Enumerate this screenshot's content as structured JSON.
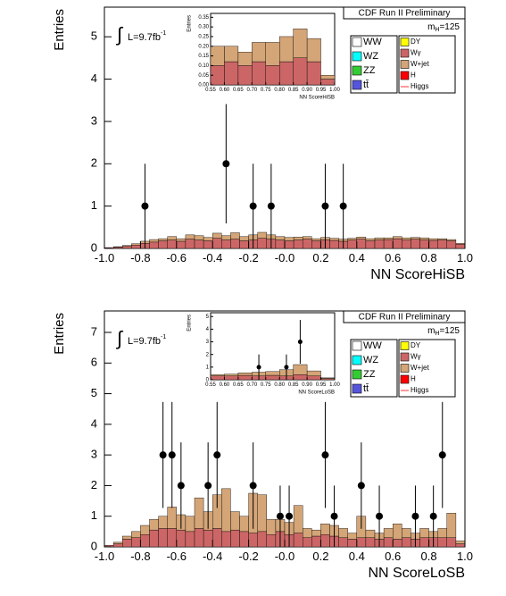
{
  "chart_data": [
    {
      "type": "histogram",
      "x_label": "NN ScoreHiSB",
      "y_label": "Entries",
      "xlim": [
        -1,
        1
      ],
      "ylim": [
        0,
        5.7
      ],
      "xticks": [
        {
          "value": -1,
          "label": "-1.0"
        },
        -0.8,
        -0.6,
        -0.4,
        -0.2,
        {
          "value": 0,
          "label": "-0.0"
        },
        0.2,
        0.4,
        0.6,
        0.8,
        {
          "value": 1,
          "label": "1.0"
        }
      ],
      "yticks": [
        0,
        1,
        2,
        3,
        4,
        5
      ],
      "bins": [
        -1,
        -0.95,
        -0.9,
        -0.85,
        -0.8,
        -0.75,
        -0.7,
        -0.65,
        -0.6,
        -0.55,
        -0.5,
        -0.45,
        -0.4,
        -0.35,
        -0.3,
        -0.25,
        -0.2,
        -0.15,
        -0.1,
        -0.05,
        0,
        0.05,
        0.1,
        0.15,
        0.2,
        0.25,
        0.3,
        0.35,
        0.4,
        0.45,
        0.5,
        0.55,
        0.6,
        0.65,
        0.7,
        0.75,
        0.8,
        0.85,
        0.9,
        0.95,
        1
      ],
      "series": [
        {
          "name": "Wγ",
          "color": "#cc6666",
          "values": [
            0.02,
            0.03,
            0.05,
            0.08,
            0.12,
            0.15,
            0.18,
            0.2,
            0.17,
            0.22,
            0.2,
            0.18,
            0.24,
            0.2,
            0.22,
            0.18,
            0.2,
            0.24,
            0.22,
            0.2,
            0.18,
            0.2,
            0.22,
            0.18,
            0.2,
            0.19,
            0.17,
            0.2,
            0.22,
            0.18,
            0.2,
            0.21,
            0.23,
            0.2,
            0.22,
            0.2,
            0.19,
            0.2,
            0.18,
            0.1
          ]
        },
        {
          "name": "W+jet",
          "color": "#d4a577",
          "values": [
            0,
            0.01,
            0.02,
            0.03,
            0.05,
            0.06,
            0.05,
            0.08,
            0.06,
            0.1,
            0.1,
            0.08,
            0.12,
            0.1,
            0.15,
            0.1,
            0.12,
            0.14,
            0.1,
            0.08,
            0.08,
            0.07,
            0.06,
            0.05,
            0.06,
            0.05,
            0.05,
            0.04,
            0.05,
            0.05,
            0.05,
            0.04,
            0.05,
            0.05,
            0.04,
            0.05,
            0.04,
            0.03,
            0.03,
            0.02
          ]
        }
      ],
      "points": {
        "x": [
          -0.775,
          -0.325,
          -0.175,
          -0.075,
          0.225,
          0.325
        ],
        "values": [
          1,
          2,
          1,
          1,
          1,
          1
        ],
        "errors": [
          1,
          1.41,
          1,
          1,
          1,
          1
        ]
      },
      "header": "CDF Run II Preliminary",
      "mass_label": {
        "main": "m",
        "sub": "H",
        "rest": "=125"
      },
      "lumi": {
        "symbol": "∫",
        "text": "L=9.7fb",
        "sup": "-1"
      },
      "legend": {
        "columns": [
          [
            {
              "name": "WW",
              "color": "#ffffff",
              "style": "box"
            },
            {
              "name": "WZ",
              "color": "#00ffff",
              "style": "box"
            },
            {
              "name": "ZZ",
              "color": "#33cc33",
              "style": "box"
            },
            {
              "name": "tt̄",
              "color": "#5555dd",
              "style": "box"
            }
          ],
          [
            {
              "name": "DY",
              "color": "#ffff00",
              "style": "box"
            },
            {
              "name": "Wγ",
              "color": "#cc6666",
              "style": "box"
            },
            {
              "name": "W+jet",
              "color": "#d4a577",
              "style": "box"
            },
            {
              "name": "H",
              "color": "#ff0000",
              "style": "box"
            },
            {
              "name": "Higgs",
              "color": "#ff3333",
              "style": "line"
            }
          ]
        ]
      }
    },
    {
      "type": "histogram",
      "x_label": "NN ScoreHiSB",
      "y_label": "Entries",
      "xlim": [
        0.55,
        1
      ],
      "ylim": [
        0,
        0.37
      ],
      "xticks": [
        0.55,
        {
          "value": 0.6,
          "label": "0.60"
        },
        0.65,
        {
          "value": 0.7,
          "label": "0.70"
        },
        0.75,
        {
          "value": 0.8,
          "label": "0.80"
        },
        0.85,
        {
          "value": 0.9,
          "label": "0.90"
        },
        0.95,
        {
          "value": 1,
          "label": "1.00"
        }
      ],
      "yticks": [
        {
          "value": 0,
          "label": "0.00"
        },
        0.05,
        {
          "value": 0.1,
          "label": "0.10"
        },
        0.15,
        {
          "value": 0.2,
          "label": "0.20"
        },
        0.25,
        {
          "value": 0.3,
          "label": "0.30"
        },
        0.35
      ],
      "bins": [
        0.55,
        0.6,
        0.65,
        0.7,
        0.75,
        0.8,
        0.85,
        0.9,
        0.95,
        1
      ],
      "series": [
        {
          "name": "Wγ",
          "color": "#cc6666",
          "values": [
            0.1,
            0.12,
            0.1,
            0.12,
            0.1,
            0.12,
            0.14,
            0.12,
            0.03
          ]
        },
        {
          "name": "W+jet",
          "color": "#d4a577",
          "values": [
            0.1,
            0.08,
            0.07,
            0.1,
            0.12,
            0.13,
            0.15,
            0.12,
            0.02
          ]
        }
      ]
    },
    {
      "type": "histogram",
      "x_label": "NN ScoreLoSB",
      "y_label": "Entries",
      "xlim": [
        -1,
        1
      ],
      "ylim": [
        0,
        7.7
      ],
      "xticks": [
        {
          "value": -1,
          "label": "-1.0"
        },
        -0.8,
        -0.6,
        -0.4,
        -0.2,
        {
          "value": 0,
          "label": "-0.0"
        },
        0.2,
        0.4,
        0.6,
        0.8,
        {
          "value": 1,
          "label": "1.0"
        }
      ],
      "yticks": [
        0,
        1,
        2,
        3,
        4,
        5,
        6,
        7
      ],
      "bins": [
        -1,
        -0.95,
        -0.9,
        -0.85,
        -0.8,
        -0.75,
        -0.7,
        -0.65,
        -0.6,
        -0.55,
        -0.5,
        -0.45,
        -0.4,
        -0.35,
        -0.3,
        -0.25,
        -0.2,
        -0.15,
        -0.1,
        -0.05,
        0,
        0.05,
        0.1,
        0.15,
        0.2,
        0.25,
        0.3,
        0.35,
        0.4,
        0.45,
        0.5,
        0.55,
        0.6,
        0.65,
        0.7,
        0.75,
        0.8,
        0.85,
        0.9,
        0.95,
        1
      ],
      "series": [
        {
          "name": "Wγ",
          "color": "#cc6666",
          "values": [
            0.05,
            0.1,
            0.25,
            0.3,
            0.4,
            0.55,
            0.6,
            0.6,
            0.55,
            0.5,
            0.6,
            0.55,
            0.6,
            0.5,
            0.55,
            0.5,
            0.45,
            0.5,
            0.4,
            0.5,
            0.4,
            0.45,
            0.3,
            0.35,
            0.4,
            0.35,
            0.3,
            0.25,
            0.3,
            0.3,
            0.25,
            0.3,
            0.25,
            0.3,
            0.25,
            0.3,
            0.3,
            0.3,
            0.3,
            0.1
          ]
        },
        {
          "name": "W+jet",
          "color": "#d4a577",
          "values": [
            0,
            0.05,
            0.1,
            0.2,
            0.3,
            0.35,
            0.4,
            0.7,
            0.5,
            0.5,
            1.0,
            0.6,
            1.1,
            1.4,
            0.6,
            0.5,
            1.3,
            1.2,
            0.5,
            0.4,
            0.4,
            0.9,
            0.3,
            0.2,
            0.35,
            0.35,
            0.3,
            0.2,
            0.7,
            0.25,
            0.2,
            0.3,
            0.5,
            0.3,
            0.2,
            0.3,
            0.2,
            0.3,
            0.8,
            0.1
          ]
        }
      ],
      "points": {
        "x": [
          -0.675,
          -0.625,
          -0.575,
          -0.425,
          -0.375,
          -0.175,
          -0.025,
          0.025,
          0.225,
          0.275,
          0.425,
          0.525,
          0.725,
          0.825,
          0.875
        ],
        "values": [
          3,
          3,
          2,
          2,
          3,
          2,
          1,
          1,
          3,
          1,
          2,
          1,
          1,
          1,
          3
        ],
        "errors": [
          1.73,
          1.73,
          1.41,
          1.41,
          1.73,
          1.41,
          1,
          1,
          1.73,
          1,
          1.41,
          1,
          1,
          1,
          1.73
        ]
      },
      "header": "CDF Run II Preliminary",
      "mass_label": {
        "main": "m",
        "sub": "H",
        "rest": "=125"
      },
      "lumi": {
        "symbol": "∫",
        "text": "L=9.7fb",
        "sup": "-1"
      },
      "legend": {
        "columns": [
          [
            {
              "name": "WW",
              "color": "#ffffff",
              "style": "box"
            },
            {
              "name": "WZ",
              "color": "#00ffff",
              "style": "box"
            },
            {
              "name": "ZZ",
              "color": "#33cc33",
              "style": "box"
            },
            {
              "name": "tt̄",
              "color": "#5555dd",
              "style": "box"
            }
          ],
          [
            {
              "name": "DY",
              "color": "#ffff00",
              "style": "box"
            },
            {
              "name": "Wγ",
              "color": "#cc6666",
              "style": "box"
            },
            {
              "name": "W+jet",
              "color": "#d4a577",
              "style": "box"
            },
            {
              "name": "H",
              "color": "#ff0000",
              "style": "box"
            },
            {
              "name": "Higgs",
              "color": "#ff3333",
              "style": "line"
            }
          ]
        ]
      }
    },
    {
      "type": "histogram",
      "x_label": "NN ScoreLoSB",
      "y_label": "Entries",
      "xlim": [
        0.55,
        1
      ],
      "ylim": [
        0,
        5.3
      ],
      "xticks": [
        0.55,
        {
          "value": 0.6,
          "label": "0.60"
        },
        0.65,
        {
          "value": 0.7,
          "label": "0.70"
        },
        0.75,
        {
          "value": 0.8,
          "label": "0.80"
        },
        0.85,
        {
          "value": 0.9,
          "label": "0.90"
        },
        0.95,
        {
          "value": 1,
          "label": "1.00"
        }
      ],
      "yticks": [
        0,
        1,
        2,
        3,
        4,
        5
      ],
      "bins": [
        0.55,
        0.6,
        0.65,
        0.7,
        0.75,
        0.8,
        0.85,
        0.9,
        0.95,
        1
      ],
      "series": [
        {
          "name": "Wγ",
          "color": "#cc6666",
          "values": [
            0.3,
            0.3,
            0.35,
            0.3,
            0.35,
            0.3,
            0.4,
            0.3,
            0.1
          ]
        },
        {
          "name": "W+jet",
          "color": "#d4a577",
          "values": [
            0.1,
            0.15,
            0.2,
            0.3,
            0.3,
            0.5,
            0.8,
            0.4,
            0.05
          ]
        }
      ],
      "points": {
        "x": [
          0.725,
          0.825,
          0.875
        ],
        "values": [
          1,
          1,
          3
        ],
        "errors": [
          1,
          1,
          1.73
        ]
      }
    }
  ]
}
